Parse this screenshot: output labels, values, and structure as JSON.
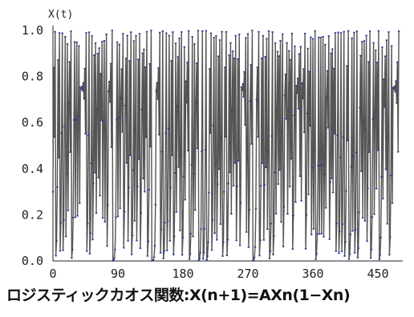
{
  "chart_data": {
    "type": "line",
    "title": "",
    "xlabel": "",
    "ylabel": "X(t)",
    "xlim": [
      0,
      480
    ],
    "ylim": [
      0,
      1
    ],
    "xticks": [
      0,
      90,
      180,
      270,
      360,
      450
    ],
    "yticks": [
      0.0,
      0.2,
      0.4,
      0.6,
      0.8,
      1.0
    ],
    "xtick_labels": [
      "0",
      "90",
      "180",
      "270",
      "360",
      "450"
    ],
    "ytick_labels": [
      "0.0",
      "0.2",
      "0.4",
      "0.6",
      "0.8",
      "1.0"
    ],
    "series": [
      {
        "generator": "logistic_map",
        "A": 4.0,
        "x0": 0.3,
        "n_points": 480,
        "line_color": "#555555",
        "marker_color": "#2b3a8f"
      }
    ],
    "grid": false
  },
  "caption": "ロジスティックカオス関数:X(n+1)=AXn(1−Xn)"
}
